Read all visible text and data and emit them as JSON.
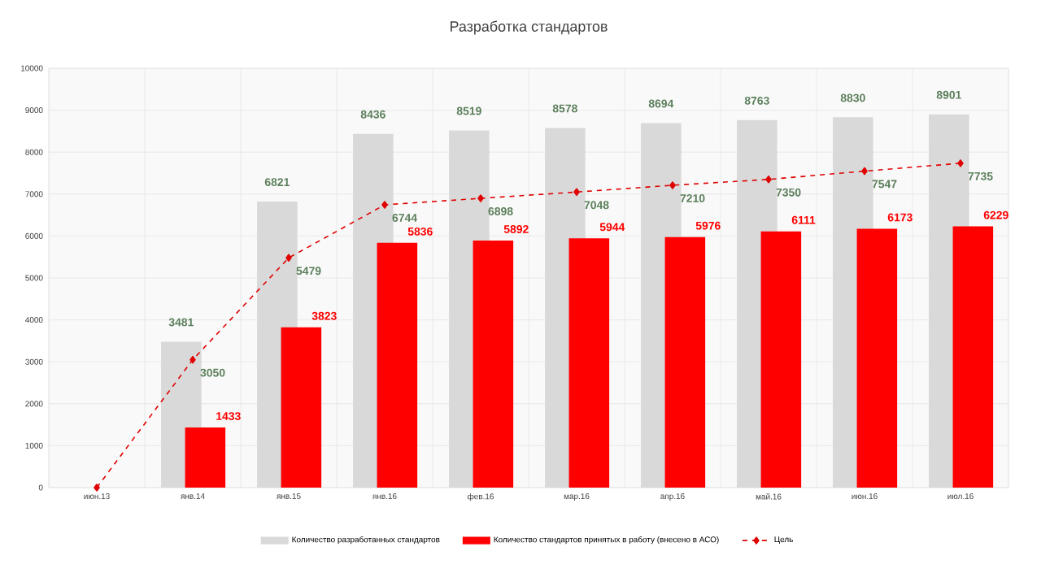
{
  "chart_data": {
    "type": "bar",
    "title": "Разработка стандартов",
    "categories": [
      "июн.13",
      "янв.14",
      "янв.15",
      "янв.16",
      "фев.16",
      "мар.16",
      "апр.16",
      "май.16",
      "июн.16",
      "июл.16"
    ],
    "series": [
      {
        "name": "Количество разработанных стандартов",
        "color": "#d9d9d9",
        "values": [
          null,
          3481,
          6821,
          8436,
          8519,
          8578,
          8694,
          8763,
          8830,
          8901
        ],
        "value_labels": [
          null,
          "3481",
          "6821",
          "8436",
          "8519",
          "8578",
          "8694",
          "8763",
          "8830",
          "8901"
        ]
      },
      {
        "name": "Количество стандартов принятых в работу (внесено в АСО)",
        "color": "#ff0000",
        "values": [
          null,
          1433,
          3823,
          5836,
          5892,
          5944,
          5976,
          6111,
          6173,
          6229
        ],
        "value_labels": [
          null,
          "1433",
          "3823",
          "5836",
          "5892",
          "5944",
          "5976",
          "6111",
          "6173",
          "6229"
        ]
      },
      {
        "name": "Цель",
        "type": "line",
        "color": "#e00000",
        "line_style": "dashed",
        "marker": "diamond",
        "values": [
          0,
          3050,
          5479,
          6744,
          6898,
          7048,
          7210,
          7350,
          7547,
          7735
        ],
        "value_labels": [
          null,
          "3050",
          "5479",
          "6744",
          "6898",
          "7048",
          "7210",
          "7350",
          "7547",
          "7735"
        ]
      }
    ],
    "ylim": [
      0,
      10000
    ],
    "yticks": [
      0,
      1000,
      2000,
      3000,
      4000,
      5000,
      6000,
      7000,
      8000,
      9000,
      10000
    ],
    "grid": true,
    "legend": "bottom"
  }
}
